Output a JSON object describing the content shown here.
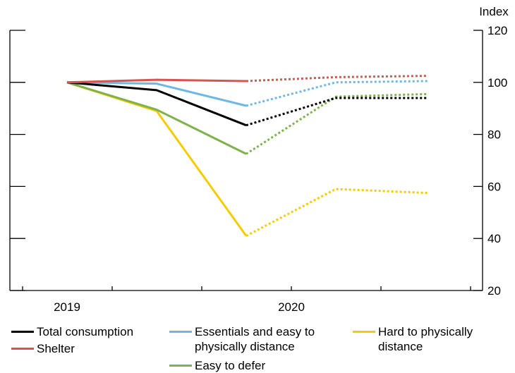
{
  "chart_data": {
    "type": "line",
    "title": "",
    "xlabel": "",
    "ylabel": "Index",
    "y_axis_side": "right",
    "ylim": [
      20,
      120
    ],
    "yticks": [
      20,
      40,
      60,
      80,
      100,
      120
    ],
    "x_categories": [
      "2019",
      "2020"
    ],
    "x_index": [
      0,
      1,
      2,
      3,
      4
    ],
    "solid_through_index": 2,
    "dashed_from_index": 2,
    "grid": false,
    "legend_position": "bottom",
    "series": [
      {
        "name": "Total consumption",
        "color": "#000000",
        "values": [
          100,
          97,
          83.5,
          94,
          94
        ]
      },
      {
        "name": "Shelter",
        "color": "#d9534f",
        "values": [
          100,
          101,
          100.5,
          102,
          102.5
        ]
      },
      {
        "name": "Essentials and easy to\nphysically distance",
        "color": "#6fb8e3",
        "values": [
          100,
          99.5,
          91,
          100,
          100.5
        ]
      },
      {
        "name": "Easy to defer",
        "color": "#7fb24a",
        "values": [
          100,
          89.5,
          72.5,
          94.5,
          95.5
        ]
      },
      {
        "name": "Hard to physically\ndistance",
        "color": "#f5cc00",
        "values": [
          100,
          89,
          41,
          59,
          57.5
        ]
      }
    ]
  }
}
